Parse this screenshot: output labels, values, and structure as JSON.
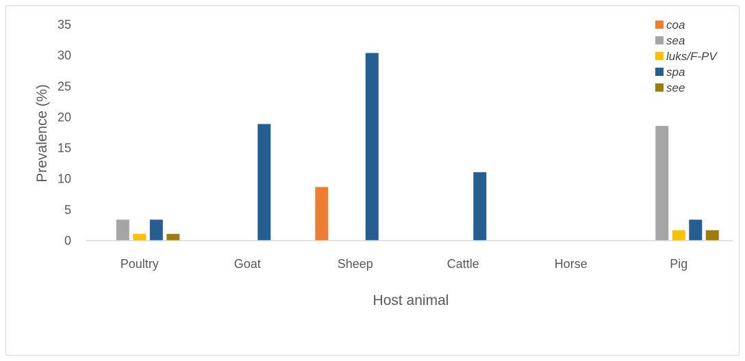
{
  "chart_data": {
    "type": "bar",
    "title": "",
    "xlabel": "Host animal",
    "ylabel": "Prevalence (%)",
    "ylim": [
      0,
      35
    ],
    "yticks": [
      0,
      5,
      10,
      15,
      20,
      25,
      30,
      35
    ],
    "grid": false,
    "legend_position": "top-right",
    "categories": [
      "Poultry",
      "Goat",
      "Sheep",
      "Cattle",
      "Horse",
      "Pig"
    ],
    "series": [
      {
        "name": "coa",
        "color": "#ed7d31",
        "values": [
          0,
          0,
          8.7,
          0,
          0,
          0
        ]
      },
      {
        "name": "sea",
        "color": "#a5a5a5",
        "values": [
          3.4,
          0,
          0,
          0,
          0,
          18.6
        ]
      },
      {
        "name": "luks/F-PV",
        "color": "#ffc000",
        "values": [
          1.1,
          0,
          0,
          0,
          0,
          1.7
        ]
      },
      {
        "name": "spa",
        "color": "#255e91",
        "values": [
          3.4,
          18.9,
          30.4,
          11.1,
          0,
          3.4
        ]
      },
      {
        "name": "see",
        "color": "#9e7c0c",
        "values": [
          1.1,
          0,
          0,
          0,
          0,
          1.7
        ]
      }
    ]
  }
}
